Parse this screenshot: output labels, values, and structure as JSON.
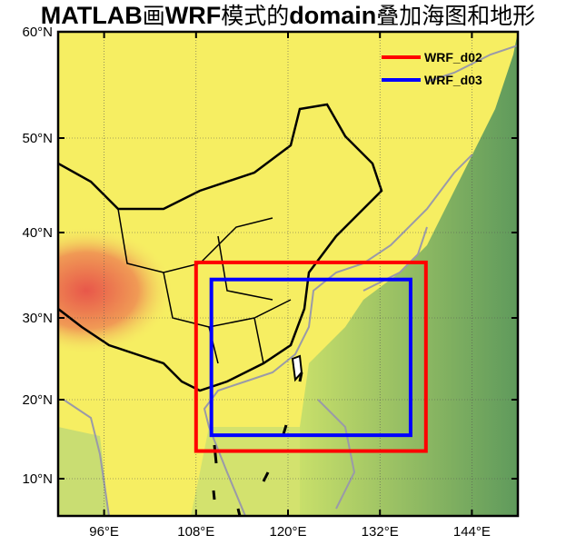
{
  "title_parts": [
    {
      "text": "MATLAB",
      "style": "latin"
    },
    {
      "text": "画",
      "style": "cn"
    },
    {
      "text": "WRF",
      "style": "latin"
    },
    {
      "text": "模式的",
      "style": "cn"
    },
    {
      "text": "domain",
      "style": "latin"
    },
    {
      "text": "叠加海图和地形",
      "style": "cn"
    }
  ],
  "chart_data": {
    "type": "map",
    "xlim": [
      90,
      150
    ],
    "ylim": [
      5,
      60
    ],
    "x_ticks": [
      96,
      108,
      120,
      132,
      144
    ],
    "x_tick_labels": [
      "96°E",
      "108°E",
      "120°E",
      "132°E",
      "144°E"
    ],
    "y_ticks": [
      10,
      20,
      30,
      40,
      50,
      60
    ],
    "y_tick_labels": [
      "10°N",
      "20°N",
      "30°N",
      "40°N",
      "50°N",
      "60°N"
    ],
    "grid": true,
    "background": "terrain and bathymetry shading",
    "legend_position": "top-right",
    "domains": [
      {
        "name": "WRF_d02",
        "color": "#ff0000",
        "lon": [
          108,
          138
        ],
        "lat": [
          13.5,
          36.5
        ]
      },
      {
        "name": "WRF_d03",
        "color": "#0000ff",
        "lon": [
          110,
          136
        ],
        "lat": [
          15.5,
          34.5
        ]
      }
    ],
    "colors": {
      "land_low": "#f5f060",
      "land_high": "#e8604a",
      "ocean_shallow": "#c8e070",
      "ocean_deep": "#6a9e60",
      "coastline": "#9a9aa8",
      "borders": "#000000"
    }
  }
}
